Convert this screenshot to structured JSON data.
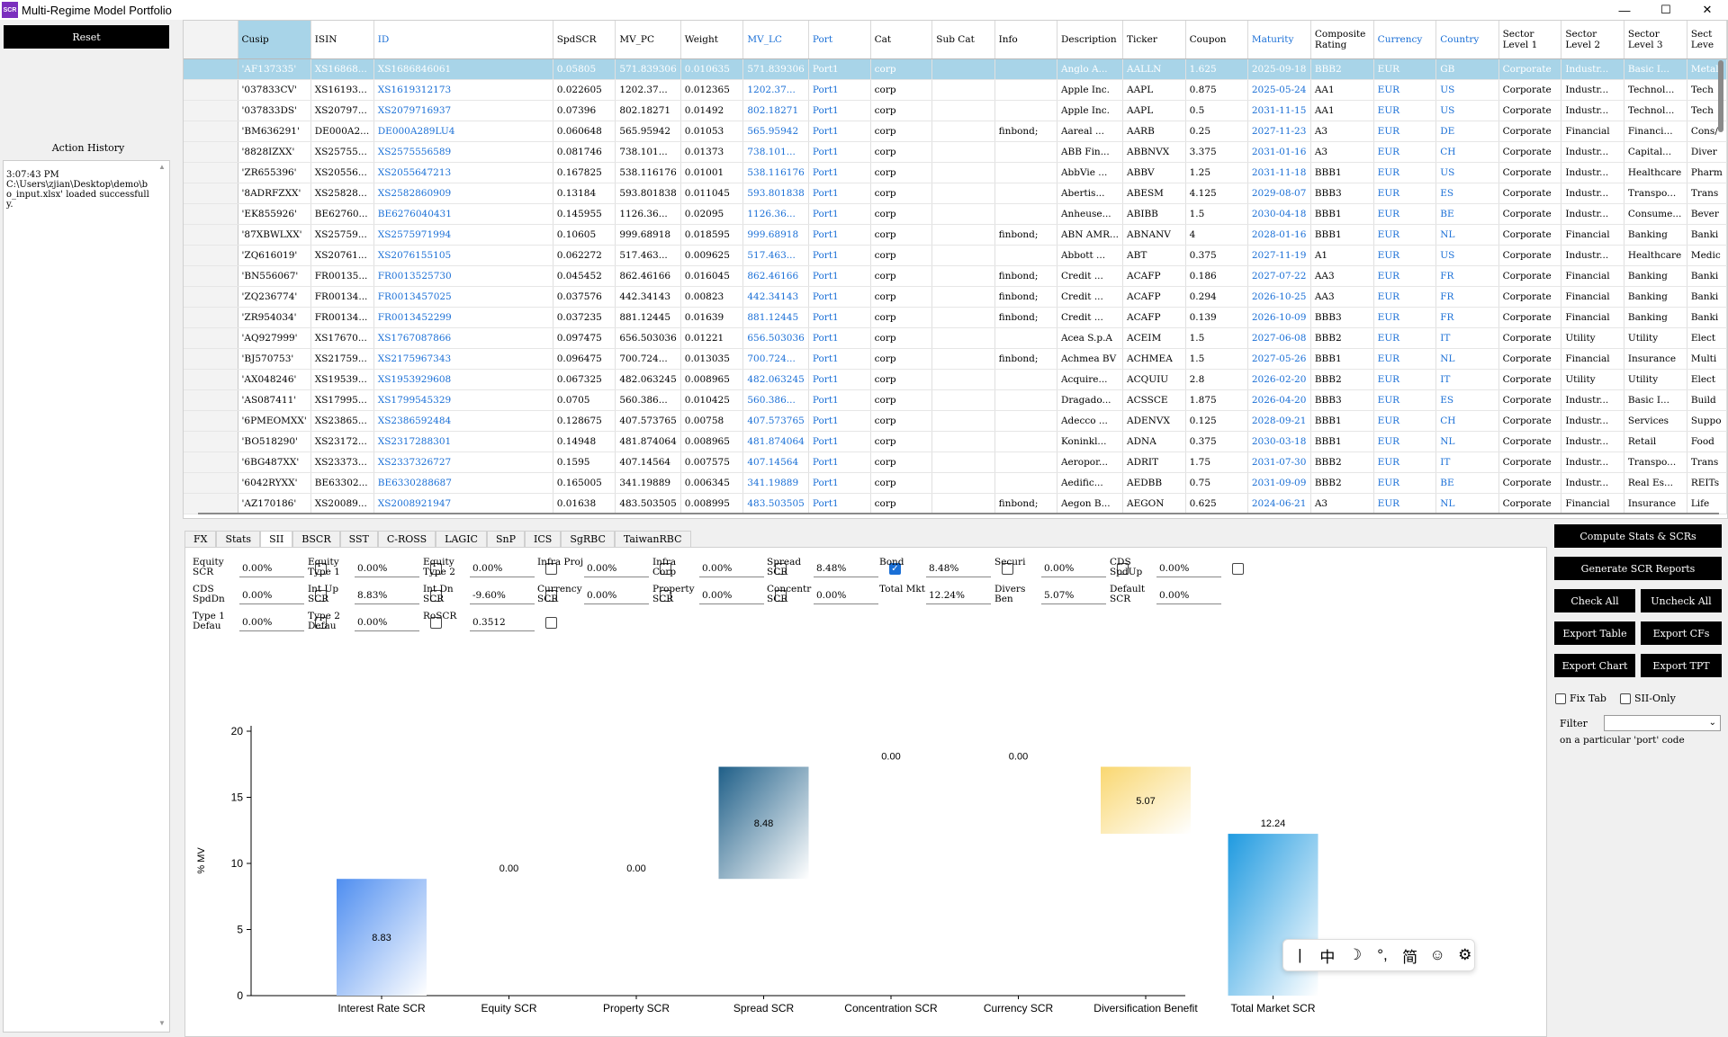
{
  "window": {
    "title": "Multi-Regime Model Portfolio",
    "icon_text": "SCR",
    "controls": [
      "—",
      "☐",
      "✕"
    ]
  },
  "left_panel": {
    "reset_label": "Reset",
    "history_title": "Action History",
    "history_text": "3:07:43 PM\nC:\\Users\\zjian\\Desktop\\demo\\bo_input.xlsx' loaded successfully."
  },
  "table": {
    "columns": [
      {
        "label": "",
        "blue": false
      },
      {
        "label": "Cusip",
        "blue": false
      },
      {
        "label": "ISIN",
        "blue": false
      },
      {
        "label": "ID",
        "blue": true
      },
      {
        "label": "SpdSCR",
        "blue": false
      },
      {
        "label": "MV_PC",
        "blue": false
      },
      {
        "label": "Weight",
        "blue": false
      },
      {
        "label": "MV_LC",
        "blue": true
      },
      {
        "label": "Port",
        "blue": true
      },
      {
        "label": "Cat",
        "blue": false
      },
      {
        "label": "Sub Cat",
        "blue": false
      },
      {
        "label": "Info",
        "blue": false
      },
      {
        "label": "Description",
        "blue": false
      },
      {
        "label": "Ticker",
        "blue": false
      },
      {
        "label": "Coupon",
        "blue": false
      },
      {
        "label": "Maturity",
        "blue": true
      },
      {
        "label": "Composite Rating",
        "blue": false
      },
      {
        "label": "Currency",
        "blue": true
      },
      {
        "label": "Country",
        "blue": true
      },
      {
        "label": "Sector Level 1",
        "blue": false
      },
      {
        "label": "Sector Level 2",
        "blue": false
      },
      {
        "label": "Sector Level 3",
        "blue": false
      },
      {
        "label": "Sect Leve",
        "blue": false
      }
    ],
    "rows": [
      [
        "'AF137335'",
        "XS16868...",
        "XS1686846061",
        "0.05805",
        "571.839306",
        "0.010635",
        "571.839306",
        "Port1",
        "corp",
        "",
        "",
        "Anglo A...",
        "AALLN",
        "1.625",
        "2025-09-18",
        "BBB2",
        "EUR",
        "GB",
        "Corporate",
        "Industr...",
        "Basic I...",
        "Metal"
      ],
      [
        "'037833CV'",
        "XS16193...",
        "XS1619312173",
        "0.022605",
        "1202.37...",
        "0.012365",
        "1202.37...",
        "Port1",
        "corp",
        "",
        "",
        "Apple Inc.",
        "AAPL",
        "0.875",
        "2025-05-24",
        "AA1",
        "EUR",
        "US",
        "Corporate",
        "Industr...",
        "Technol...",
        "Tech"
      ],
      [
        "'037833DS'",
        "XS20797...",
        "XS2079716937",
        "0.07396",
        "802.18271",
        "0.01492",
        "802.18271",
        "Port1",
        "corp",
        "",
        "",
        "Apple Inc.",
        "AAPL",
        "0.5",
        "2031-11-15",
        "AA1",
        "EUR",
        "US",
        "Corporate",
        "Industr...",
        "Technol...",
        "Tech"
      ],
      [
        "'BM636291'",
        "DE000A2...",
        "DE000A289LU4",
        "0.060648",
        "565.95942",
        "0.01053",
        "565.95942",
        "Port1",
        "corp",
        "",
        "finbond;",
        "Aareal ...",
        "AARB",
        "0.25",
        "2027-11-23",
        "A3",
        "EUR",
        "DE",
        "Corporate",
        "Financial",
        "Financi...",
        "Cons/"
      ],
      [
        "'8828IZXX'",
        "XS25755...",
        "XS2575556589",
        "0.081746",
        "738.101...",
        "0.01373",
        "738.101...",
        "Port1",
        "corp",
        "",
        "",
        "ABB Fin...",
        "ABBNVX",
        "3.375",
        "2031-01-16",
        "A3",
        "EUR",
        "CH",
        "Corporate",
        "Industr...",
        "Capital...",
        "Diver"
      ],
      [
        "'ZR655396'",
        "XS20556...",
        "XS2055647213",
        "0.167825",
        "538.116176",
        "0.01001",
        "538.116176",
        "Port1",
        "corp",
        "",
        "",
        "AbbVie ...",
        "ABBV",
        "1.25",
        "2031-11-18",
        "BBB1",
        "EUR",
        "US",
        "Corporate",
        "Industr...",
        "Healthcare",
        "Pharm"
      ],
      [
        "'8ADRFZXX'",
        "XS25828...",
        "XS2582860909",
        "0.13184",
        "593.801838",
        "0.011045",
        "593.801838",
        "Port1",
        "corp",
        "",
        "",
        "Abertis...",
        "ABESM",
        "4.125",
        "2029-08-07",
        "BBB3",
        "EUR",
        "ES",
        "Corporate",
        "Industr...",
        "Transpo...",
        "Trans"
      ],
      [
        "'EK855926'",
        "BE62760...",
        "BE6276040431",
        "0.145955",
        "1126.36...",
        "0.02095",
        "1126.36...",
        "Port1",
        "corp",
        "",
        "",
        "Anheuse...",
        "ABIBB",
        "1.5",
        "2030-04-18",
        "BBB1",
        "EUR",
        "BE",
        "Corporate",
        "Industr...",
        "Consume...",
        "Bever"
      ],
      [
        "'87XBWLXX'",
        "XS25759...",
        "XS2575971994",
        "0.10605",
        "999.68918",
        "0.018595",
        "999.68918",
        "Port1",
        "corp",
        "",
        "finbond;",
        "ABN AMR...",
        "ABNANV",
        "4",
        "2028-01-16",
        "BBB1",
        "EUR",
        "NL",
        "Corporate",
        "Financial",
        "Banking",
        "Banki"
      ],
      [
        "'ZQ616019'",
        "XS20761...",
        "XS2076155105",
        "0.062272",
        "517.463...",
        "0.009625",
        "517.463...",
        "Port1",
        "corp",
        "",
        "",
        "Abbott ...",
        "ABT",
        "0.375",
        "2027-11-19",
        "A1",
        "EUR",
        "US",
        "Corporate",
        "Industr...",
        "Healthcare",
        "Medic"
      ],
      [
        "'BN556067'",
        "FR00135...",
        "FR0013525730",
        "0.045452",
        "862.46166",
        "0.016045",
        "862.46166",
        "Port1",
        "corp",
        "",
        "finbond;",
        "Credit ...",
        "ACAFP",
        "0.186",
        "2027-07-22",
        "AA3",
        "EUR",
        "FR",
        "Corporate",
        "Financial",
        "Banking",
        "Banki"
      ],
      [
        "'ZQ236774'",
        "FR00134...",
        "FR0013457025",
        "0.037576",
        "442.34143",
        "0.00823",
        "442.34143",
        "Port1",
        "corp",
        "",
        "finbond;",
        "Credit ...",
        "ACAFP",
        "0.294",
        "2026-10-25",
        "AA3",
        "EUR",
        "FR",
        "Corporate",
        "Financial",
        "Banking",
        "Banki"
      ],
      [
        "'ZR954034'",
        "FR00134...",
        "FR0013452299",
        "0.037235",
        "881.12445",
        "0.01639",
        "881.12445",
        "Port1",
        "corp",
        "",
        "finbond;",
        "Credit ...",
        "ACAFP",
        "0.139",
        "2026-10-09",
        "BBB3",
        "EUR",
        "FR",
        "Corporate",
        "Financial",
        "Banking",
        "Banki"
      ],
      [
        "'AQ927999'",
        "XS17670...",
        "XS1767087866",
        "0.097475",
        "656.503036",
        "0.01221",
        "656.503036",
        "Port1",
        "corp",
        "",
        "",
        "Acea S.p.A",
        "ACEIM",
        "1.5",
        "2027-06-08",
        "BBB2",
        "EUR",
        "IT",
        "Corporate",
        "Utility",
        "Utility",
        "Elect"
      ],
      [
        "'BJ570753'",
        "XS21759...",
        "XS2175967343",
        "0.096475",
        "700.724...",
        "0.013035",
        "700.724...",
        "Port1",
        "corp",
        "",
        "finbond;",
        "Achmea BV",
        "ACHMEA",
        "1.5",
        "2027-05-26",
        "BBB1",
        "EUR",
        "NL",
        "Corporate",
        "Financial",
        "Insurance",
        "Multi"
      ],
      [
        "'AX048246'",
        "XS19539...",
        "XS1953929608",
        "0.067325",
        "482.063245",
        "0.008965",
        "482.063245",
        "Port1",
        "corp",
        "",
        "",
        "Acquire...",
        "ACQUIU",
        "2.8",
        "2026-02-20",
        "BBB2",
        "EUR",
        "IT",
        "Corporate",
        "Utility",
        "Utility",
        "Elect"
      ],
      [
        "'AS087411'",
        "XS17995...",
        "XS1799545329",
        "0.0705",
        "560.386...",
        "0.010425",
        "560.386...",
        "Port1",
        "corp",
        "",
        "",
        "Dragado...",
        "ACSSCE",
        "1.875",
        "2026-04-20",
        "BBB3",
        "EUR",
        "ES",
        "Corporate",
        "Industr...",
        "Basic I...",
        "Build"
      ],
      [
        "'6PMEOMXX'",
        "XS23865...",
        "XS2386592484",
        "0.128675",
        "407.573765",
        "0.00758",
        "407.573765",
        "Port1",
        "corp",
        "",
        "",
        "Adecco ...",
        "ADENVX",
        "0.125",
        "2028-09-21",
        "BBB1",
        "EUR",
        "CH",
        "Corporate",
        "Industr...",
        "Services",
        "Suppo"
      ],
      [
        "'BO518290'",
        "XS23172...",
        "XS2317288301",
        "0.14948",
        "481.874064",
        "0.008965",
        "481.874064",
        "Port1",
        "corp",
        "",
        "",
        "Koninkl...",
        "ADNA",
        "0.375",
        "2030-03-18",
        "BBB1",
        "EUR",
        "NL",
        "Corporate",
        "Industr...",
        "Retail",
        "Food"
      ],
      [
        "'6BG487XX'",
        "XS23373...",
        "XS2337326727",
        "0.1595",
        "407.14564",
        "0.007575",
        "407.14564",
        "Port1",
        "corp",
        "",
        "",
        "Aeropor...",
        "ADRIT",
        "1.75",
        "2031-07-30",
        "BBB2",
        "EUR",
        "IT",
        "Corporate",
        "Industr...",
        "Transpo...",
        "Trans"
      ],
      [
        "'6042RYXX'",
        "BE63302...",
        "BE6330288687",
        "0.165005",
        "341.19889",
        "0.006345",
        "341.19889",
        "Port1",
        "corp",
        "",
        "",
        "Aedific...",
        "AEDBB",
        "0.75",
        "2031-09-09",
        "BBB2",
        "EUR",
        "BE",
        "Corporate",
        "Industr...",
        "Real Es...",
        "REITs"
      ],
      [
        "'AZ170186'",
        "XS20089...",
        "XS2008921947",
        "0.01638",
        "483.503505",
        "0.008995",
        "483.503505",
        "Port1",
        "corp",
        "",
        "finbond;",
        "Aegon B...",
        "AEGON",
        "0.625",
        "2024-06-21",
        "A3",
        "EUR",
        "NL",
        "Corporate",
        "Financial",
        "Insurance",
        "Life"
      ]
    ]
  },
  "tabs": [
    "FX",
    "Stats",
    "SII",
    "BSCR",
    "SST",
    "C-ROSS",
    "LAGIC",
    "SnP",
    "ICS",
    "SgRBC",
    "TaiwanRBC"
  ],
  "active_tab": "SII",
  "sii_fields": [
    {
      "label": "Equity SCR",
      "value": "0.00%",
      "checked": false
    },
    {
      "label": "Equity Type 1",
      "value": "0.00%",
      "checked": false
    },
    {
      "label": "Equity Type 2",
      "value": "0.00%",
      "checked": false
    },
    {
      "label": "Infra Proj",
      "value": "0.00%",
      "checked": false
    },
    {
      "label": "Infra Corp",
      "value": "0.00%",
      "checked": false
    },
    {
      "label": "Spread SCR",
      "value": "8.48%",
      "checked": true
    },
    {
      "label": "Bond",
      "value": "8.48%",
      "checked": false
    },
    {
      "label": "Securi",
      "value": "0.00%",
      "checked": false
    },
    {
      "label": "CDS SpdUp",
      "value": "0.00%",
      "checked": false
    },
    {
      "label": "CDS SpdDn",
      "value": "0.00%",
      "checked": false
    },
    {
      "label": "Int Up SCR",
      "value": "8.83%",
      "checked": false
    },
    {
      "label": "Int Dn SCR",
      "value": "-9.60%",
      "checked": false
    },
    {
      "label": "Currency SCR",
      "value": "0.00%",
      "checked": false
    },
    {
      "label": "Property SCR",
      "value": "0.00%",
      "checked": false
    },
    {
      "label": "Concentr SCR",
      "value": "0.00%",
      "checked": null
    },
    {
      "label": "Total Mkt",
      "value": "12.24%",
      "checked": null
    },
    {
      "label": "Divers Ben",
      "value": "5.07%",
      "checked": null
    },
    {
      "label": "Default SCR",
      "value": "0.00%",
      "checked": null
    },
    {
      "label": "Type 1 Defau",
      "value": "0.00%",
      "checked": false
    },
    {
      "label": "Type 2 Defau",
      "value": "0.00%",
      "checked": false
    },
    {
      "label": "RoSCR",
      "value": "0.3512",
      "checked": false
    }
  ],
  "right_panel": {
    "compute_label": "Compute Stats & SCRs",
    "reports_label": "Generate SCR Reports",
    "check_all_label": "Check All",
    "uncheck_all_label": "Uncheck All",
    "export_table_label": "Export Table",
    "export_cfs_label": "Export CFs",
    "export_chart_label": "Export Chart",
    "export_tpt_label": "Export TPT",
    "fix_tab_label": "Fix Tab",
    "sii_only_label": "SII-Only",
    "filter_label": "Filter",
    "filter_value": "",
    "filter_hint": "on a particular 'port' code"
  },
  "ime": {
    "items": [
      "|",
      "中",
      "☽",
      "°,",
      "简",
      "☺",
      "⚙"
    ]
  },
  "chart_data": {
    "type": "waterfall",
    "ylabel": "% MV",
    "ylim": [
      0,
      20
    ],
    "yticks": [
      0,
      5,
      10,
      15,
      20
    ],
    "categories": [
      "Interest Rate SCR",
      "Equity SCR",
      "Property SCR",
      "Spread SCR",
      "Concentration SCR",
      "Currency SCR",
      "Diversification Benefit",
      "Total Market SCR"
    ],
    "values": [
      8.83,
      0.0,
      0.0,
      8.48,
      0.0,
      0.0,
      5.07,
      12.24
    ],
    "bar_start": [
      0,
      8.83,
      8.83,
      8.83,
      17.31,
      17.31,
      12.24,
      0
    ],
    "bar_end": [
      8.83,
      8.83,
      8.83,
      17.31,
      17.31,
      17.31,
      17.31,
      12.24
    ],
    "labels": [
      "8.83",
      "0.00",
      "0.00",
      "8.48",
      "0.00",
      "0.00",
      "5.07",
      "12.24"
    ],
    "colors": [
      "#4f8ef0",
      "#cccccc",
      "#cccccc",
      "#1f5f88",
      "#cccccc",
      "#cccccc",
      "#f9d770",
      "#1f9ae0"
    ]
  }
}
